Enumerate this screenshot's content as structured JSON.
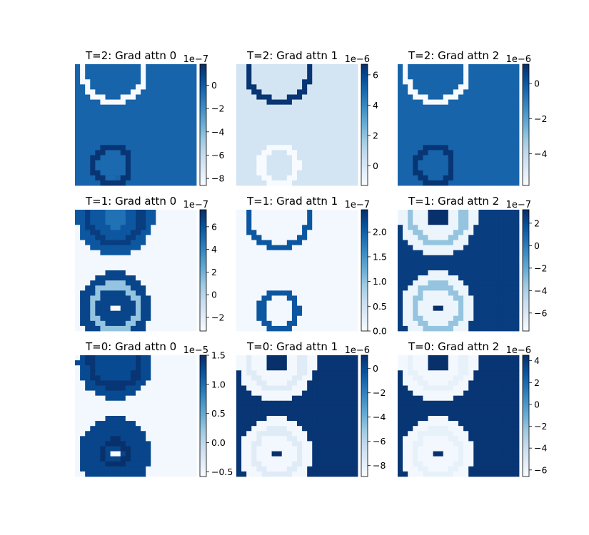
{
  "chart_data": [
    {
      "type": "heatmap",
      "title": "T=2: Grad attn 0",
      "colormap": "Blues",
      "colorbar": {
        "exponent": "1e−7",
        "ticks": [
          0,
          -2,
          -4,
          -6,
          -8
        ],
        "tick_labels": [
          "0",
          "−2",
          "−4",
          "−6",
          "−8"
        ],
        "range": [
          -8.6,
          1.8
        ]
      },
      "pattern": {
        "kind": "rings",
        "bg": 0.8,
        "bottom_dark": [
          0.6,
          0.85
        ],
        "inner": 0.78
      },
      "rings": [
        {
          "cx": 0.32,
          "cy": 0.06,
          "r": 0.25,
          "v": 0.0
        },
        {
          "cx": 0.3,
          "cy": 0.83,
          "r": 0.15,
          "v": 0.98
        }
      ]
    },
    {
      "type": "heatmap",
      "title": "T=2: Grad attn 1",
      "colormap": "Blues",
      "colorbar": {
        "exponent": "1e−6",
        "ticks": [
          6,
          4,
          2,
          0
        ],
        "tick_labels": [
          "6",
          "4",
          "2",
          "0"
        ],
        "range": [
          -1.3,
          6.7
        ]
      },
      "pattern": {
        "kind": "rings",
        "bg": 0.18,
        "inner": 0.18
      },
      "rings": [
        {
          "cx": 0.35,
          "cy": 0.06,
          "r": 0.25,
          "v": 0.98
        },
        {
          "cx": 0.35,
          "cy": 0.83,
          "r": 0.15,
          "v": 0.0
        }
      ]
    },
    {
      "type": "heatmap",
      "title": "T=2: Grad attn 2",
      "colormap": "Blues",
      "colorbar": {
        "exponent": "1e−6",
        "ticks": [
          0,
          -2,
          -4
        ],
        "tick_labels": [
          "0",
          "−2",
          "−4"
        ],
        "range": [
          -5.8,
          1.1
        ]
      },
      "pattern": {
        "kind": "rings",
        "bg": 0.8,
        "inner": 0.8
      },
      "rings": [
        {
          "cx": 0.32,
          "cy": 0.06,
          "r": 0.25,
          "v": 0.0
        },
        {
          "cx": 0.3,
          "cy": 0.83,
          "r": 0.15,
          "v": 0.98
        }
      ]
    },
    {
      "type": "heatmap",
      "title": "T=1: Grad attn 0",
      "colormap": "Blues",
      "colorbar": {
        "exponent": "1e−7",
        "ticks": [
          6,
          4,
          2,
          0,
          -2
        ],
        "tick_labels": [
          "6",
          "4",
          "2",
          "0",
          "−2"
        ],
        "range": [
          -3.2,
          7.5
        ]
      },
      "pattern": {
        "kind": "dual",
        "bg": 0.02
      },
      "rings": []
    },
    {
      "type": "heatmap",
      "title": "T=1: Grad attn 1",
      "colormap": "Blues",
      "colorbar": {
        "exponent": "1e−7",
        "ticks": [
          2.0,
          1.5,
          1.0,
          0.5,
          0.0
        ],
        "tick_labels": [
          "2.0",
          "1.5",
          "1.0",
          "0.5",
          "0.0"
        ],
        "range": [
          0.0,
          2.45
        ]
      },
      "pattern": {
        "kind": "rings",
        "bg": 0.02,
        "inner": 0.02
      },
      "rings": [
        {
          "cx": 0.35,
          "cy": 0.06,
          "r": 0.25,
          "v": 0.85
        },
        {
          "cx": 0.35,
          "cy": 0.83,
          "r": 0.15,
          "v": 0.85
        }
      ]
    },
    {
      "type": "heatmap",
      "title": "T=1: Grad attn 2",
      "colormap": "Blues",
      "colorbar": {
        "exponent": "1e−7",
        "ticks": [
          2,
          0,
          -2,
          -4,
          -6
        ],
        "tick_labels": [
          "2",
          "0",
          "−2",
          "−4",
          "−6"
        ],
        "range": [
          -7.6,
          3.2
        ]
      },
      "pattern": {
        "kind": "disks",
        "bg": 0.95,
        "disk": 0.05,
        "ring": 0.4
      },
      "rings": []
    },
    {
      "type": "heatmap",
      "title": "T=0: Grad attn 0",
      "colormap": "Blues",
      "colorbar": {
        "exponent": "1e−5",
        "ticks": [
          1.5,
          1.0,
          0.5,
          0.0,
          -0.5
        ],
        "tick_labels": [
          "1.5",
          "1.0",
          "0.5",
          "0.0",
          "−0.5"
        ],
        "range": [
          -0.58,
          1.5
        ]
      },
      "pattern": {
        "kind": "dualdark",
        "bg": 0.02
      },
      "rings": []
    },
    {
      "type": "heatmap",
      "title": "T=0: Grad attn 1",
      "colormap": "Blues",
      "colorbar": {
        "exponent": "1e−6",
        "ticks": [
          0,
          -2,
          -4,
          -6,
          -8
        ],
        "tick_labels": [
          "0",
          "−2",
          "−4",
          "−6",
          "−8"
        ],
        "range": [
          -8.9,
          1.1
        ]
      },
      "pattern": {
        "kind": "disks",
        "bg": 0.98,
        "disk": 0.02,
        "ring": 0.12
      },
      "rings": []
    },
    {
      "type": "heatmap",
      "title": "T=0: Grad attn 2",
      "colormap": "Blues",
      "colorbar": {
        "exponent": "1e−6",
        "ticks": [
          4,
          2,
          0,
          -2,
          -4,
          -6
        ],
        "tick_labels": [
          "4",
          "2",
          "0",
          "−2",
          "−4",
          "−6"
        ],
        "range": [
          -6.6,
          4.5
        ]
      },
      "pattern": {
        "kind": "disks",
        "bg": 0.98,
        "disk": 0.02,
        "ring": 0.08
      },
      "rings": []
    }
  ]
}
